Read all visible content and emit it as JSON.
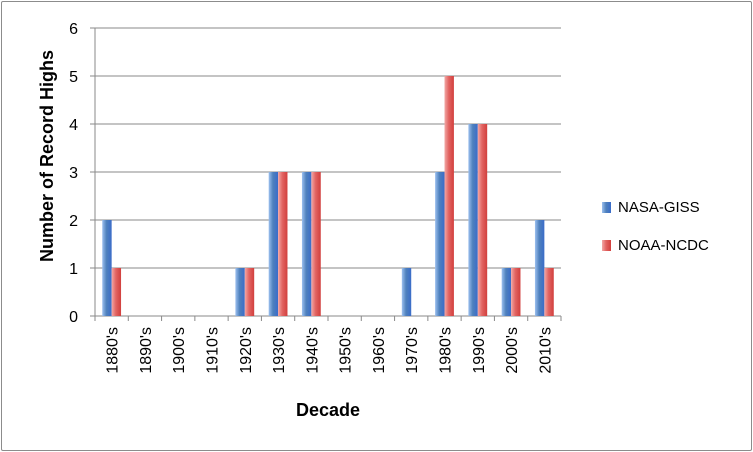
{
  "chart_data": {
    "type": "bar",
    "title": "",
    "xlabel": "Decade",
    "ylabel": "Number of Record Highs",
    "ylim": [
      0,
      6
    ],
    "yticks": [
      "0",
      "1",
      "2",
      "3",
      "4",
      "5",
      "6"
    ],
    "grid": true,
    "legend_position": "right",
    "categories": [
      "1880's",
      "1890's",
      "1900's",
      "1910's",
      "1920's",
      "1930's",
      "1940's",
      "1950's",
      "1960's",
      "1970's",
      "1980's",
      "1990's",
      "2000's",
      "2010's"
    ],
    "series": [
      {
        "name": "NASA-GISS",
        "color": "#4f81bd",
        "values": [
          2,
          0,
          0,
          0,
          1,
          3,
          3,
          0,
          0,
          1,
          3,
          4,
          1,
          2
        ]
      },
      {
        "name": "NOAA-NCDC",
        "color": "#c0504d",
        "values": [
          1,
          0,
          0,
          0,
          1,
          3,
          3,
          0,
          0,
          0,
          5,
          4,
          1,
          1
        ]
      }
    ]
  }
}
